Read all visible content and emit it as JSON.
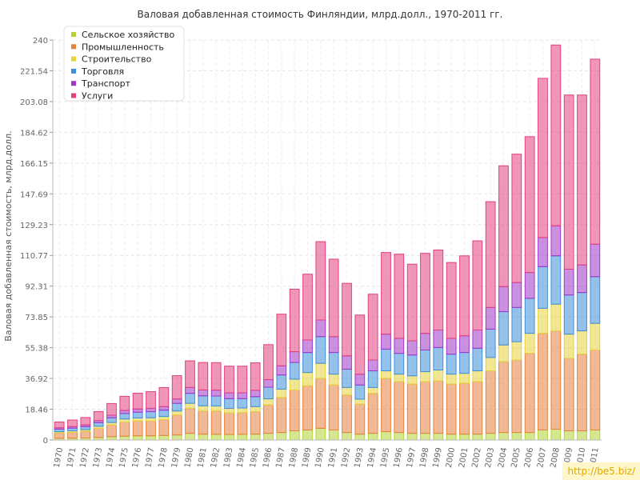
{
  "chart_data": {
    "type": "stacked-bar",
    "title": "Валовая добавленная стоимость Финляндии, млрд.долл., 1970-2011 гг.",
    "ylabel": "Валовая добавленная стоимость, млрд.долл.",
    "ylim": [
      0,
      240
    ],
    "yticks": [
      "0",
      "18.46",
      "36.92",
      "55.38",
      "73.85",
      "92.31",
      "110.77",
      "129.23",
      "147.69",
      "166.15",
      "184.62",
      "203.08",
      "221.54",
      "240"
    ],
    "categories": [
      "1970",
      "1971",
      "1972",
      "1973",
      "1974",
      "1975",
      "1976",
      "1977",
      "1978",
      "1979",
      "1980",
      "1981",
      "1982",
      "1983",
      "1984",
      "1985",
      "1986",
      "1987",
      "1988",
      "1989",
      "1990",
      "1991",
      "1992",
      "1993",
      "1994",
      "1995",
      "1996",
      "1997",
      "1998",
      "1999",
      "2000",
      "2001",
      "2002",
      "2003",
      "2004",
      "2005",
      "2006",
      "2007",
      "2008",
      "2009",
      "2010",
      "2011"
    ],
    "series": [
      {
        "name": "Сельское хозяйство",
        "color": "#b4d436",
        "values": [
          1.0,
          1.1,
          1.2,
          1.5,
          2.0,
          2.3,
          2.5,
          2.5,
          2.7,
          3.0,
          4.0,
          3.5,
          3.4,
          3.3,
          3.4,
          3.5,
          4.0,
          4.5,
          5.5,
          6.0,
          7.0,
          6.0,
          4.5,
          3.5,
          4.0,
          5.0,
          4.5,
          4.0,
          4.0,
          4.0,
          3.5,
          3.5,
          3.5,
          4.0,
          4.5,
          4.5,
          4.5,
          6.0,
          6.5,
          5.5,
          5.5,
          6.0
        ]
      },
      {
        "name": "Промышленность",
        "color": "#e5823c",
        "values": [
          3.2,
          3.5,
          4.0,
          5.5,
          7.0,
          8.5,
          8.9,
          9.0,
          9.5,
          12.0,
          15.0,
          14.0,
          14.0,
          13.0,
          13.0,
          13.5,
          17.0,
          21.0,
          24.5,
          26.5,
          30.0,
          27.0,
          22.5,
          18.0,
          24.0,
          32.0,
          30.5,
          29.5,
          31.0,
          31.5,
          30.0,
          30.5,
          31.5,
          37.5,
          42.5,
          43.5,
          47.5,
          58.0,
          59.0,
          43.5,
          46.0,
          48.0
        ]
      },
      {
        "name": "Строительство",
        "color": "#e6d33c",
        "values": [
          0.8,
          0.9,
          1.0,
          1.2,
          1.5,
          1.8,
          1.8,
          1.8,
          1.9,
          2.4,
          3.0,
          3.0,
          3.0,
          2.7,
          2.8,
          3.0,
          3.7,
          5.0,
          6.5,
          8.0,
          9.0,
          6.5,
          4.5,
          3.0,
          3.5,
          4.5,
          4.5,
          5.0,
          6.0,
          6.5,
          6.0,
          6.0,
          6.5,
          8.0,
          10.0,
          11.0,
          12.0,
          15.0,
          16.0,
          14.5,
          14.0,
          16.0
        ]
      },
      {
        "name": "Торговля",
        "color": "#3d8fd9",
        "values": [
          1.5,
          1.6,
          1.8,
          2.2,
          2.8,
          3.3,
          3.5,
          3.7,
          3.8,
          4.6,
          6.0,
          6.0,
          6.0,
          5.8,
          5.6,
          6.0,
          7.0,
          8.5,
          10.0,
          12.0,
          16.0,
          13.0,
          11.0,
          8.5,
          10.0,
          13.0,
          12.5,
          12.5,
          13.0,
          13.5,
          12.0,
          12.5,
          13.5,
          17.0,
          20.0,
          20.5,
          21.0,
          25.0,
          29.0,
          23.5,
          23.0,
          28.0
        ]
      },
      {
        "name": "Транспорт",
        "color": "#a036c9",
        "values": [
          0.8,
          0.9,
          1.0,
          1.2,
          1.6,
          1.8,
          1.9,
          2.0,
          2.1,
          2.6,
          3.5,
          3.5,
          3.5,
          3.5,
          3.5,
          3.8,
          4.5,
          5.5,
          6.5,
          7.5,
          10.0,
          9.5,
          8.0,
          6.5,
          6.5,
          9.0,
          9.0,
          8.5,
          10.0,
          10.5,
          9.5,
          10.0,
          11.0,
          13.0,
          15.0,
          15.0,
          15.5,
          17.5,
          18.0,
          15.5,
          16.5,
          19.5
        ]
      },
      {
        "name": "Услуги",
        "color": "#e33f7f",
        "values": [
          3.5,
          4.0,
          4.5,
          5.5,
          7.0,
          8.5,
          9.5,
          10.0,
          11.5,
          14.0,
          16.0,
          16.5,
          16.5,
          16.0,
          16.0,
          16.5,
          21.0,
          31.0,
          37.5,
          39.5,
          47.0,
          46.5,
          43.5,
          35.5,
          39.5,
          49.0,
          50.5,
          46.0,
          48.0,
          48.0,
          45.5,
          48.0,
          53.5,
          63.5,
          72.5,
          77.0,
          81.5,
          95.5,
          108.5,
          104.5,
          102.0,
          111.0
        ]
      }
    ]
  },
  "watermark": "http://be5.biz/"
}
